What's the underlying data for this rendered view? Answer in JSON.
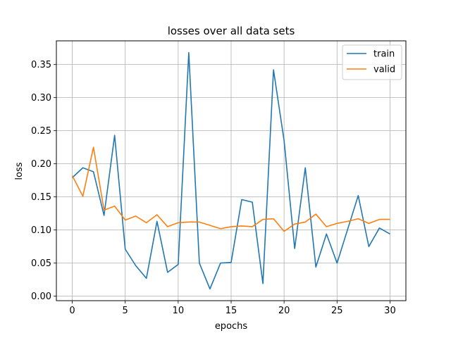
{
  "chart_data": {
    "type": "line",
    "title": "losses over all data sets",
    "xlabel": "epochs",
    "ylabel": "loss",
    "xlim": [
      -1.5,
      31.5
    ],
    "ylim": [
      -0.0068,
      0.3858
    ],
    "xticks": [
      0,
      5,
      10,
      15,
      20,
      25,
      30
    ],
    "yticks": [
      0.0,
      0.05,
      0.1,
      0.15,
      0.2,
      0.25,
      0.3,
      0.35
    ],
    "ytick_labels": [
      "0.00",
      "0.05",
      "0.10",
      "0.15",
      "0.20",
      "0.25",
      "0.30",
      "0.35"
    ],
    "grid": true,
    "legend_position": "top-right",
    "x": [
      0,
      1,
      2,
      3,
      4,
      5,
      6,
      7,
      8,
      9,
      10,
      11,
      12,
      13,
      14,
      15,
      16,
      17,
      18,
      19,
      20,
      21,
      22,
      23,
      24,
      25,
      26,
      27,
      28,
      29,
      30
    ],
    "series": [
      {
        "name": "train",
        "color": "#1f77b4",
        "values": [
          0.179,
          0.194,
          0.188,
          0.122,
          0.243,
          0.071,
          0.046,
          0.027,
          0.113,
          0.036,
          0.048,
          0.368,
          0.05,
          0.011,
          0.05,
          0.051,
          0.146,
          0.142,
          0.019,
          0.342,
          0.235,
          0.072,
          0.194,
          0.044,
          0.094,
          0.05,
          0.101,
          0.152,
          0.075,
          0.103,
          0.094
        ]
      },
      {
        "name": "valid",
        "color": "#ff7f0e",
        "values": [
          0.182,
          0.151,
          0.225,
          0.13,
          0.136,
          0.115,
          0.121,
          0.111,
          0.123,
          0.105,
          0.111,
          0.112,
          0.112,
          0.107,
          0.102,
          0.105,
          0.106,
          0.105,
          0.116,
          0.117,
          0.098,
          0.109,
          0.112,
          0.124,
          0.105,
          0.11,
          0.113,
          0.117,
          0.11,
          0.116,
          0.116
        ]
      }
    ]
  }
}
